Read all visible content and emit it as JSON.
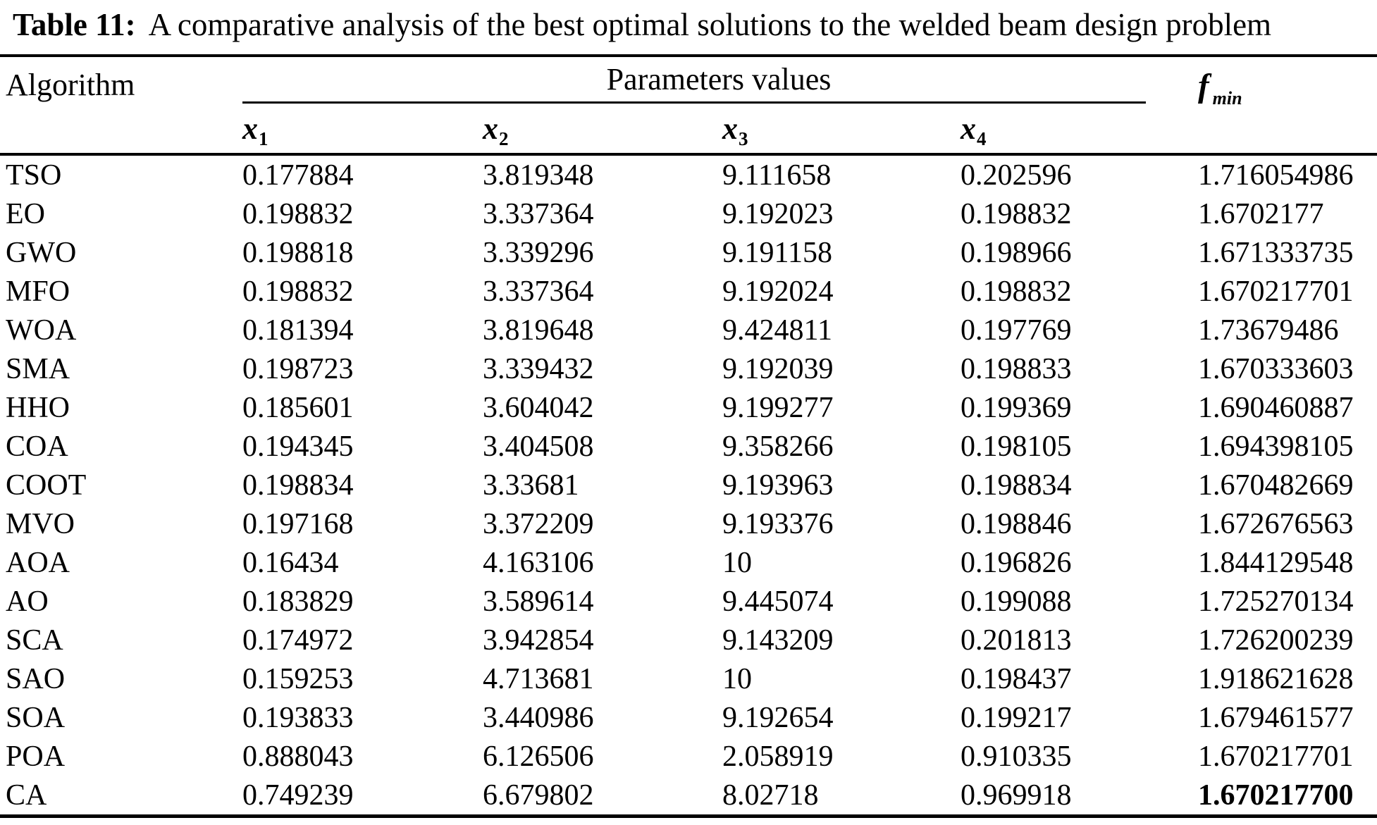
{
  "colors": {
    "text_color": "#000000",
    "background_color": "#ffffff"
  },
  "title": {
    "label": "Table 11:",
    "text": "A comparative analysis of the best optimal solutions to the welded beam design problem"
  },
  "table": {
    "headers": {
      "algorithm": "Algorithm",
      "parameters_group": "Parameters values",
      "param_base": "x",
      "param_subs": [
        "1",
        "2",
        "3",
        "4"
      ],
      "fmin_base": "f",
      "fmin_sub": "min"
    },
    "rows": [
      {
        "algorithm": "TSO",
        "x1": "0.177884",
        "x2": "3.819348",
        "x3": "9.111658",
        "x4": "0.202596",
        "fmin": "1.716054986",
        "fmin_bold": false
      },
      {
        "algorithm": "EO",
        "x1": "0.198832",
        "x2": "3.337364",
        "x3": "9.192023",
        "x4": "0.198832",
        "fmin": "1.6702177",
        "fmin_bold": false
      },
      {
        "algorithm": "GWO",
        "x1": "0.198818",
        "x2": "3.339296",
        "x3": "9.191158",
        "x4": "0.198966",
        "fmin": "1.671333735",
        "fmin_bold": false
      },
      {
        "algorithm": "MFO",
        "x1": "0.198832",
        "x2": "3.337364",
        "x3": "9.192024",
        "x4": "0.198832",
        "fmin": "1.670217701",
        "fmin_bold": false
      },
      {
        "algorithm": "WOA",
        "x1": "0.181394",
        "x2": "3.819648",
        "x3": "9.424811",
        "x4": "0.197769",
        "fmin": "1.73679486",
        "fmin_bold": false
      },
      {
        "algorithm": "SMA",
        "x1": "0.198723",
        "x2": "3.339432",
        "x3": "9.192039",
        "x4": "0.198833",
        "fmin": "1.670333603",
        "fmin_bold": false
      },
      {
        "algorithm": "HHO",
        "x1": "0.185601",
        "x2": "3.604042",
        "x3": "9.199277",
        "x4": "0.199369",
        "fmin": "1.690460887",
        "fmin_bold": false
      },
      {
        "algorithm": "COA",
        "x1": "0.194345",
        "x2": "3.404508",
        "x3": "9.358266",
        "x4": "0.198105",
        "fmin": "1.694398105",
        "fmin_bold": false
      },
      {
        "algorithm": "COOT",
        "x1": "0.198834",
        "x2": "3.33681",
        "x3": "9.193963",
        "x4": "0.198834",
        "fmin": "1.670482669",
        "fmin_bold": false
      },
      {
        "algorithm": "MVO",
        "x1": "0.197168",
        "x2": "3.372209",
        "x3": "9.193376",
        "x4": "0.198846",
        "fmin": "1.672676563",
        "fmin_bold": false
      },
      {
        "algorithm": "AOA",
        "x1": "0.16434",
        "x2": "4.163106",
        "x3": "10",
        "x4": "0.196826",
        "fmin": "1.844129548",
        "fmin_bold": false
      },
      {
        "algorithm": "AO",
        "x1": "0.183829",
        "x2": "3.589614",
        "x3": "9.445074",
        "x4": "0.199088",
        "fmin": "1.725270134",
        "fmin_bold": false
      },
      {
        "algorithm": "SCA",
        "x1": "0.174972",
        "x2": "3.942854",
        "x3": "9.143209",
        "x4": "0.201813",
        "fmin": "1.726200239",
        "fmin_bold": false
      },
      {
        "algorithm": "SAO",
        "x1": "0.159253",
        "x2": "4.713681",
        "x3": "10",
        "x4": "0.198437",
        "fmin": "1.918621628",
        "fmin_bold": false
      },
      {
        "algorithm": "SOA",
        "x1": "0.193833",
        "x2": "3.440986",
        "x3": "9.192654",
        "x4": "0.199217",
        "fmin": "1.679461577",
        "fmin_bold": false
      },
      {
        "algorithm": "POA",
        "x1": "0.888043",
        "x2": "6.126506",
        "x3": "2.058919",
        "x4": "0.910335",
        "fmin": "1.670217701",
        "fmin_bold": false
      },
      {
        "algorithm": "CA",
        "x1": "0.749239",
        "x2": "6.679802",
        "x3": "8.02718",
        "x4": "0.969918",
        "fmin": "1.670217700",
        "fmin_bold": true
      }
    ]
  }
}
